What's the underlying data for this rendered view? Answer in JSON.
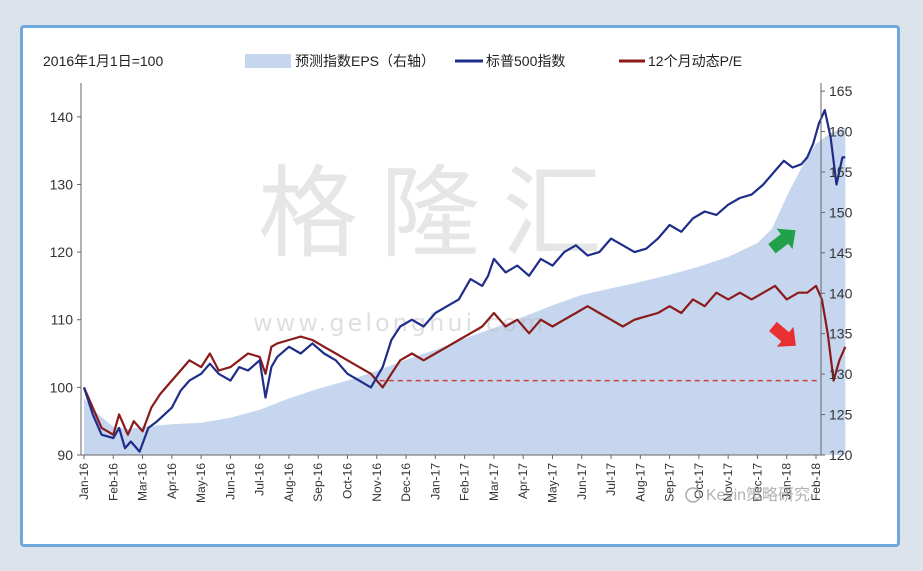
{
  "chart_data": {
    "type": "line",
    "note_label": "2016年1月1日=100",
    "legend": [
      {
        "name": "预测指数EPS（右轴）",
        "color": "#c5d6ee",
        "kind": "area"
      },
      {
        "name": "标普500指数",
        "color": "#1f2d8a",
        "kind": "line"
      },
      {
        "name": "12个月动态P/E",
        "color": "#8b1a1a",
        "kind": "line"
      }
    ],
    "x_ticks": [
      "Jan-16",
      "Feb-16",
      "Mar-16",
      "Apr-16",
      "May-16",
      "Jun-16",
      "Jul-16",
      "Aug-16",
      "Sep-16",
      "Oct-16",
      "Nov-16",
      "Dec-16",
      "Jan-17",
      "Feb-17",
      "Mar-17",
      "Apr-17",
      "May-17",
      "Jun-17",
      "Jul-17",
      "Aug-17",
      "Sep-17",
      "Oct-17",
      "Nov-17",
      "Dec-17",
      "Jan-18",
      "Feb-18"
    ],
    "y_left": {
      "min": 90,
      "max": 145,
      "ticks": [
        90,
        100,
        110,
        120,
        130,
        140
      ]
    },
    "y_right": {
      "min": 120,
      "max": 166,
      "ticks": [
        120,
        125,
        130,
        135,
        140,
        145,
        150,
        155,
        160,
        165
      ]
    },
    "reference_line": {
      "value_left": 101,
      "color": "#d04040"
    },
    "series": [
      {
        "name": "预测指数EPS（右轴）",
        "axis": "right",
        "x": [
          0,
          0.5,
          1,
          1.5,
          2,
          3,
          4,
          5,
          6,
          7,
          8,
          9,
          10,
          11,
          12,
          13,
          14,
          15,
          16,
          17,
          18,
          19,
          20,
          21,
          22,
          23,
          23.5,
          24,
          24.5,
          25,
          25.5,
          26
        ],
        "values": [
          127,
          125,
          123.5,
          123.2,
          123.5,
          123.8,
          124,
          124.6,
          125.6,
          127,
          128.2,
          129.2,
          130.4,
          131.8,
          133,
          134.4,
          135.7,
          137.1,
          138.5,
          139.8,
          140.6,
          141.4,
          142.3,
          143.3,
          144.5,
          146.2,
          148,
          152,
          155.5,
          158.5,
          159.8,
          160.5
        ]
      },
      {
        "name": "标普500指数",
        "axis": "left",
        "x": [
          0,
          0.3,
          0.6,
          1,
          1.2,
          1.4,
          1.6,
          1.9,
          2.2,
          2.5,
          3,
          3.3,
          3.6,
          4,
          4.3,
          4.6,
          5,
          5.3,
          5.6,
          6,
          6.2,
          6.4,
          6.6,
          7,
          7.4,
          7.8,
          8.2,
          8.6,
          9,
          9.4,
          9.8,
          10.2,
          10.5,
          10.8,
          11.2,
          11.6,
          12,
          12.4,
          12.8,
          13.2,
          13.6,
          13.8,
          14,
          14.4,
          14.8,
          15.2,
          15.6,
          16,
          16.4,
          16.8,
          17.2,
          17.6,
          18,
          18.4,
          18.8,
          19.2,
          19.6,
          20,
          20.4,
          20.8,
          21.2,
          21.6,
          22,
          22.4,
          22.8,
          23.2,
          23.6,
          23.9,
          24.2,
          24.5,
          24.7,
          24.9,
          25.1,
          25.3,
          25.5,
          25.7,
          25.9,
          26
        ],
        "values": [
          100,
          96,
          93,
          92.5,
          94,
          91,
          92,
          90.5,
          94,
          95,
          97,
          99.5,
          101,
          102,
          103.5,
          102,
          101,
          103,
          102.5,
          104,
          98.5,
          103,
          104.5,
          106,
          105,
          106.5,
          105,
          104,
          102,
          101,
          100,
          103,
          107,
          109,
          110,
          109,
          111,
          112,
          113,
          116,
          115,
          116.5,
          119,
          117,
          118,
          116.5,
          119,
          118,
          120,
          121,
          119.5,
          120,
          122,
          121,
          120,
          120.5,
          122,
          124,
          123,
          125,
          126,
          125.5,
          127,
          128,
          128.5,
          130,
          132,
          133.5,
          132.5,
          133,
          134,
          136,
          139,
          141,
          137,
          130,
          134,
          134
        ]
      },
      {
        "name": "12个月动态P/E",
        "axis": "left",
        "x": [
          0,
          0.3,
          0.6,
          1,
          1.2,
          1.5,
          1.7,
          2,
          2.3,
          2.6,
          3,
          3.3,
          3.6,
          4,
          4.3,
          4.6,
          5,
          5.3,
          5.6,
          6,
          6.2,
          6.4,
          6.6,
          7,
          7.4,
          7.8,
          8.2,
          8.6,
          9,
          9.4,
          9.8,
          10,
          10.2,
          10.5,
          10.8,
          11.2,
          11.6,
          12,
          12.4,
          12.8,
          13.2,
          13.6,
          13.8,
          14,
          14.4,
          14.8,
          15.2,
          15.6,
          16,
          16.4,
          16.8,
          17.2,
          17.6,
          18,
          18.4,
          18.8,
          19.2,
          19.6,
          20,
          20.4,
          20.8,
          21.2,
          21.6,
          22,
          22.4,
          22.8,
          23.2,
          23.6,
          24,
          24.4,
          24.7,
          25,
          25.2,
          25.4,
          25.6,
          25.8,
          26
        ],
        "values": [
          100,
          97,
          94,
          93,
          96,
          93,
          95,
          93.5,
          97,
          99,
          101,
          102.5,
          104,
          103,
          105,
          102.5,
          103,
          104,
          105,
          104.5,
          102,
          106,
          106.5,
          107,
          107.5,
          107,
          106,
          105,
          104,
          103,
          102,
          101,
          100,
          102,
          104,
          105,
          104,
          105,
          106,
          107,
          108,
          109,
          110,
          111,
          109,
          110,
          108,
          110,
          109,
          110,
          111,
          112,
          111,
          110,
          109,
          110,
          110.5,
          111,
          112,
          111,
          113,
          112,
          114,
          113,
          114,
          113,
          114,
          115,
          113,
          114,
          114,
          115,
          113,
          108,
          101,
          104,
          106
        ]
      }
    ],
    "annotations": [
      {
        "type": "arrow",
        "direction": "up-right",
        "color": "#22a04a"
      },
      {
        "type": "arrow",
        "direction": "down-right",
        "color": "#e83030"
      }
    ],
    "watermark": {
      "main": "格隆汇",
      "url": "www.gelonghui.com",
      "credit": "Kevin策略研究"
    }
  }
}
